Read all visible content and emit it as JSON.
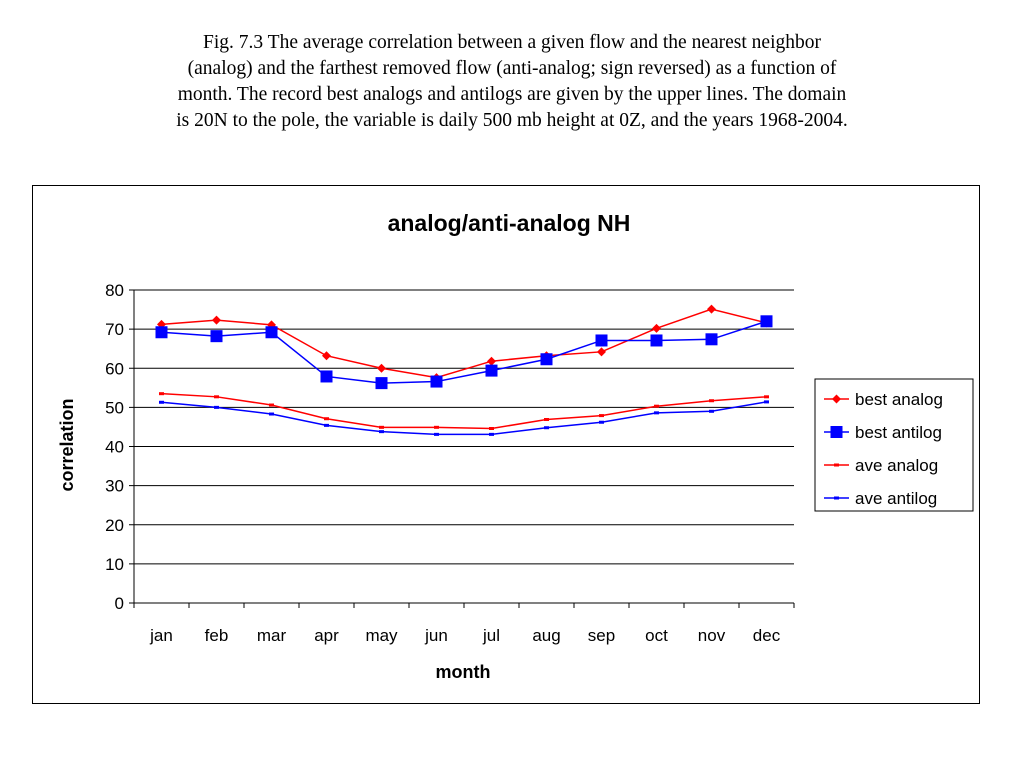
{
  "caption": {
    "lines": [
      "Fig. 7.3 The average correlation between a given flow and the nearest neighbor",
      "(analog) and the farthest removed flow (anti-analog; sign reversed) as a function of",
      "month. The record best analogs and antilogs are given by the upper lines. The domain",
      "is 20N to the pole, the variable is daily 500 mb height at 0Z, and the years 1968-2004."
    ]
  },
  "chart_data": {
    "type": "line",
    "title": "analog/anti-analog NH",
    "xlabel": "month",
    "ylabel": "correlation",
    "categories": [
      "jan",
      "feb",
      "mar",
      "apr",
      "may",
      "jun",
      "jul",
      "aug",
      "sep",
      "oct",
      "nov",
      "dec"
    ],
    "ylim": [
      0,
      80
    ],
    "yticks": [
      0,
      10,
      20,
      30,
      40,
      50,
      60,
      70,
      80
    ],
    "grid": true,
    "legend_position": "right",
    "series": [
      {
        "name": "best analog",
        "color": "#ff0000",
        "marker": "diamond",
        "values": [
          71.2,
          72.3,
          71.1,
          63.2,
          60.0,
          57.6,
          61.8,
          63.2,
          64.2,
          70.2,
          75.1,
          71.6
        ]
      },
      {
        "name": "best antilog",
        "color": "#0000ff",
        "marker": "square",
        "values": [
          69.2,
          68.2,
          69.2,
          57.9,
          56.2,
          56.6,
          59.4,
          62.3,
          67.1,
          67.1,
          67.4,
          72.0
        ]
      },
      {
        "name": "ave analog",
        "color": "#ff0000",
        "marker": "dash",
        "values": [
          53.5,
          52.7,
          50.6,
          47.1,
          44.9,
          44.9,
          44.6,
          46.9,
          47.9,
          50.3,
          51.7,
          52.7
        ]
      },
      {
        "name": "ave antilog",
        "color": "#0000ff",
        "marker": "dash",
        "values": [
          51.3,
          50.0,
          48.3,
          45.4,
          43.8,
          43.1,
          43.1,
          44.8,
          46.2,
          48.6,
          49.0,
          51.4
        ]
      }
    ]
  }
}
